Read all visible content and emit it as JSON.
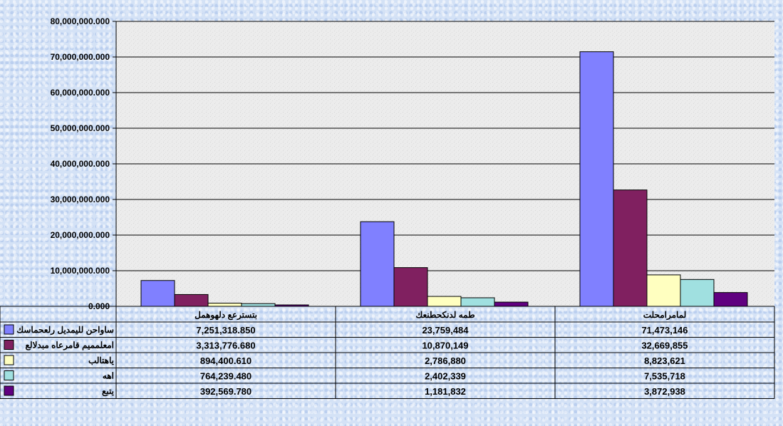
{
  "chart_data": {
    "type": "bar",
    "categories": [
      "بتسترعع دلهوهمل",
      "طمه لدنكحطنعك",
      "لمامرامحلت"
    ],
    "series": [
      {
        "name": "ساواحن لليمديل رلعحماسك",
        "color": "#8080ff",
        "values": [
          7251318.85,
          23759484,
          71473146
        ],
        "labels": [
          "7,251,318.850",
          "23,759,484",
          "71,473,146"
        ]
      },
      {
        "name": "امعلمميم قامرعاه مبدلالع",
        "color": "#802060",
        "values": [
          3313776.68,
          10870149,
          32669855
        ],
        "labels": [
          "3,313,776.680",
          "10,870,149",
          "32,669,855"
        ]
      },
      {
        "name": "ياهتالب",
        "color": "#ffffc0",
        "values": [
          894400.61,
          2786880,
          8823621
        ],
        "labels": [
          "894,400.610",
          "2,786,880",
          "8,823,621"
        ]
      },
      {
        "name": "اهه",
        "color": "#a0e0e0",
        "values": [
          764239.48,
          2402339,
          7535718
        ],
        "labels": [
          "764,239.480",
          "2,402,339",
          "7,535,718"
        ]
      },
      {
        "name": "يتبع",
        "color": "#600080",
        "values": [
          392569.78,
          1181832,
          3872938
        ],
        "labels": [
          "392,569.780",
          "1,181,832",
          "3,872,938"
        ]
      }
    ],
    "ylim": [
      0,
      80000000
    ],
    "yticks": [
      0,
      10000000,
      20000000,
      30000000,
      40000000,
      50000000,
      60000000,
      70000000,
      80000000
    ],
    "ytick_labels": [
      "0.000",
      "10,000,000.000",
      "20,000,000.000",
      "30,000,000.000",
      "40,000,000.000",
      "50,000,000.000",
      "60,000,000.000",
      "70,000,000.000",
      "80,000,000.000"
    ],
    "grid": true,
    "legend": "data-table-left"
  }
}
